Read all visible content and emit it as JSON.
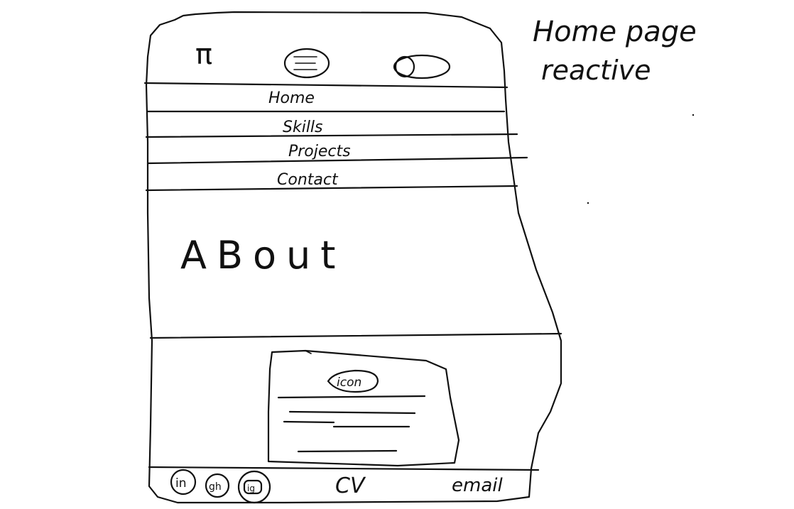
{
  "annotation": {
    "title": "Home page",
    "subtitle": "reactive"
  },
  "header": {
    "logo_text": "π",
    "menu_icon": "hamburger-menu-icon",
    "toggle_icon": "theme-toggle-icon"
  },
  "nav": {
    "items": [
      "Home",
      "Skills",
      "Projects",
      "Contact"
    ]
  },
  "about": {
    "heading": "ABout"
  },
  "card": {
    "icon_label": "icon"
  },
  "footer": {
    "social_icons": [
      "linkedin-icon",
      "github-icon",
      "instagram-icon"
    ],
    "social_labels": [
      "in",
      "gh",
      "ig"
    ],
    "cv_label": "CV",
    "email_label": "email"
  }
}
